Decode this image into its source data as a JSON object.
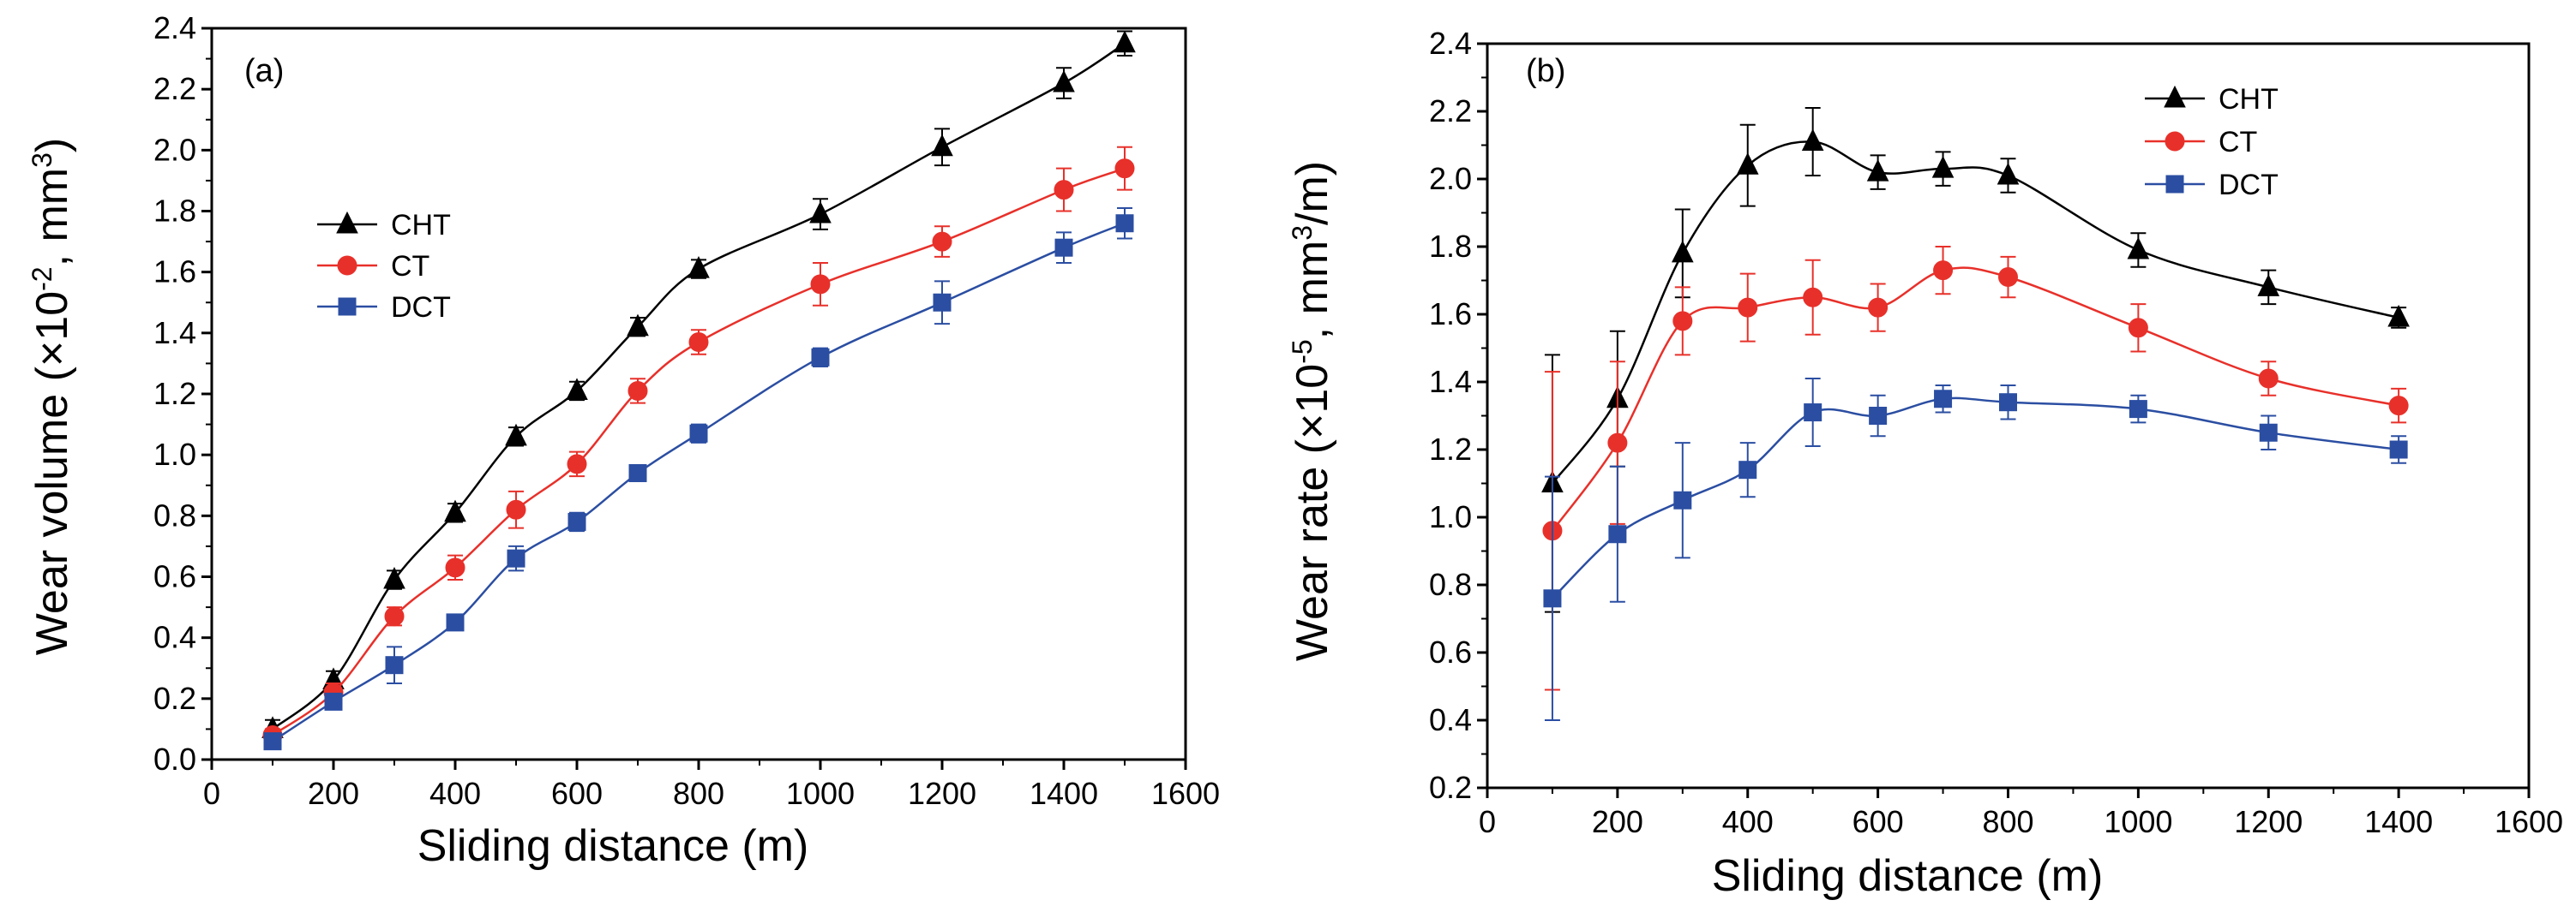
{
  "colors": {
    "CHT": "#000000",
    "CT": "#e8302a",
    "DCT": "#2b4ea2"
  },
  "chart_data": [
    {
      "type": "line",
      "panel_label": "(a)",
      "xlabel": "Sliding distance (m)",
      "ylabel": {
        "main": "Wear volume (",
        "pre": "×10",
        "exp": "-2",
        "mid": ", mm",
        "unit_exp": "3",
        "end": ")"
      },
      "xlim": [
        0,
        1600
      ],
      "ylim": [
        0,
        2.4
      ],
      "x_ticks": [
        "0",
        "200",
        "400",
        "600",
        "800",
        "1000",
        "1200",
        "1400",
        "1600"
      ],
      "y_ticks": [
        "0.0",
        "0.2",
        "0.4",
        "0.6",
        "0.8",
        "1.0",
        "1.2",
        "1.4",
        "1.6",
        "1.8",
        "2.0",
        "2.2",
        "2.4"
      ],
      "legend": [
        "CHT",
        "CT",
        "DCT"
      ],
      "legend_position": "upper-left",
      "series": [
        {
          "name": "CHT",
          "marker": "triangle",
          "x": [
            100,
            200,
            300,
            400,
            500,
            600,
            700,
            800,
            1000,
            1200,
            1400,
            1500
          ],
          "y": [
            0.1,
            0.26,
            0.59,
            0.81,
            1.06,
            1.21,
            1.42,
            1.61,
            1.79,
            2.01,
            2.22,
            2.35
          ],
          "err": [
            0.03,
            0.03,
            0.03,
            0.03,
            0.03,
            0.03,
            0.03,
            0.03,
            0.05,
            0.06,
            0.05,
            0.04
          ]
        },
        {
          "name": "CT",
          "marker": "circle",
          "x": [
            100,
            200,
            300,
            400,
            500,
            600,
            700,
            800,
            1000,
            1200,
            1400,
            1500
          ],
          "y": [
            0.08,
            0.22,
            0.47,
            0.63,
            0.82,
            0.97,
            1.21,
            1.37,
            1.56,
            1.7,
            1.87,
            1.94
          ],
          "err": [
            0.02,
            0.03,
            0.03,
            0.04,
            0.06,
            0.04,
            0.04,
            0.04,
            0.07,
            0.05,
            0.07,
            0.07
          ]
        },
        {
          "name": "DCT",
          "marker": "square",
          "x": [
            100,
            200,
            300,
            400,
            500,
            600,
            700,
            800,
            1000,
            1200,
            1400,
            1500
          ],
          "y": [
            0.06,
            0.19,
            0.31,
            0.45,
            0.66,
            0.78,
            0.94,
            1.07,
            1.32,
            1.5,
            1.68,
            1.76
          ],
          "err": [
            0.02,
            0.02,
            0.06,
            0.02,
            0.04,
            0.03,
            0.02,
            0.03,
            0.03,
            0.07,
            0.05,
            0.05
          ]
        }
      ]
    },
    {
      "type": "line",
      "panel_label": "(b)",
      "xlabel": "Sliding distance (m)",
      "ylabel": {
        "main": "Wear rate (",
        "pre": "×10",
        "exp": "-5",
        "mid": ", mm",
        "unit_exp": "3",
        "end": "/m)"
      },
      "xlim": [
        0,
        1600
      ],
      "ylim": [
        0.2,
        2.4
      ],
      "x_ticks": [
        "0",
        "200",
        "400",
        "600",
        "800",
        "1000",
        "1200",
        "1400",
        "1600"
      ],
      "y_ticks": [
        "0.2",
        "0.4",
        "0.6",
        "0.8",
        "1.0",
        "1.2",
        "1.4",
        "1.6",
        "1.8",
        "2.0",
        "2.2",
        "2.4"
      ],
      "legend": [
        "CHT",
        "CT",
        "DCT"
      ],
      "legend_position": "upper-right",
      "series": [
        {
          "name": "CHT",
          "marker": "triangle",
          "x": [
            100,
            200,
            300,
            400,
            500,
            600,
            700,
            800,
            1000,
            1200,
            1400
          ],
          "y": [
            1.1,
            1.35,
            1.78,
            2.04,
            2.11,
            2.02,
            2.03,
            2.01,
            1.79,
            1.68,
            1.59
          ],
          "err": [
            0.38,
            0.2,
            0.13,
            0.12,
            0.1,
            0.05,
            0.05,
            0.05,
            0.05,
            0.05,
            0.03
          ]
        },
        {
          "name": "CT",
          "marker": "circle",
          "x": [
            100,
            200,
            300,
            400,
            500,
            600,
            700,
            800,
            1000,
            1200,
            1400
          ],
          "y": [
            0.96,
            1.22,
            1.58,
            1.62,
            1.65,
            1.62,
            1.73,
            1.71,
            1.56,
            1.41,
            1.33
          ],
          "err": [
            0.47,
            0.24,
            0.1,
            0.1,
            0.11,
            0.07,
            0.07,
            0.06,
            0.07,
            0.05,
            0.05
          ]
        },
        {
          "name": "DCT",
          "marker": "square",
          "x": [
            100,
            200,
            300,
            400,
            500,
            600,
            700,
            800,
            1000,
            1200,
            1400
          ],
          "y": [
            0.76,
            0.95,
            1.05,
            1.14,
            1.31,
            1.3,
            1.35,
            1.34,
            1.32,
            1.25,
            1.2
          ],
          "err": [
            0.36,
            0.2,
            0.17,
            0.08,
            0.1,
            0.06,
            0.04,
            0.05,
            0.04,
            0.05,
            0.04
          ]
        }
      ]
    }
  ]
}
